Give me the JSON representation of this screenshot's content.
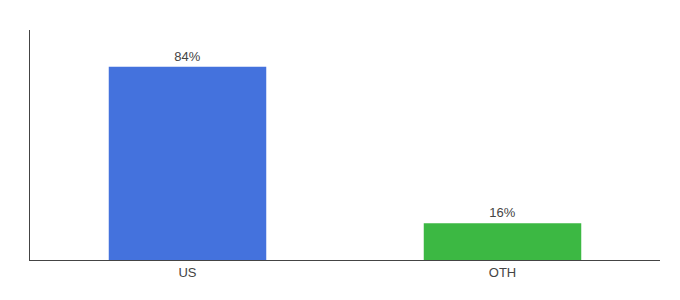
{
  "chart_data": {
    "type": "bar",
    "categories": [
      "US",
      "OTH"
    ],
    "values": [
      84,
      16
    ],
    "value_labels": [
      "84%",
      "16%"
    ],
    "data_labels": true,
    "colors": [
      "#4472DD",
      "#3CB843"
    ],
    "ylim": [
      0,
      100
    ],
    "grid": false,
    "tick_labels": "x"
  }
}
